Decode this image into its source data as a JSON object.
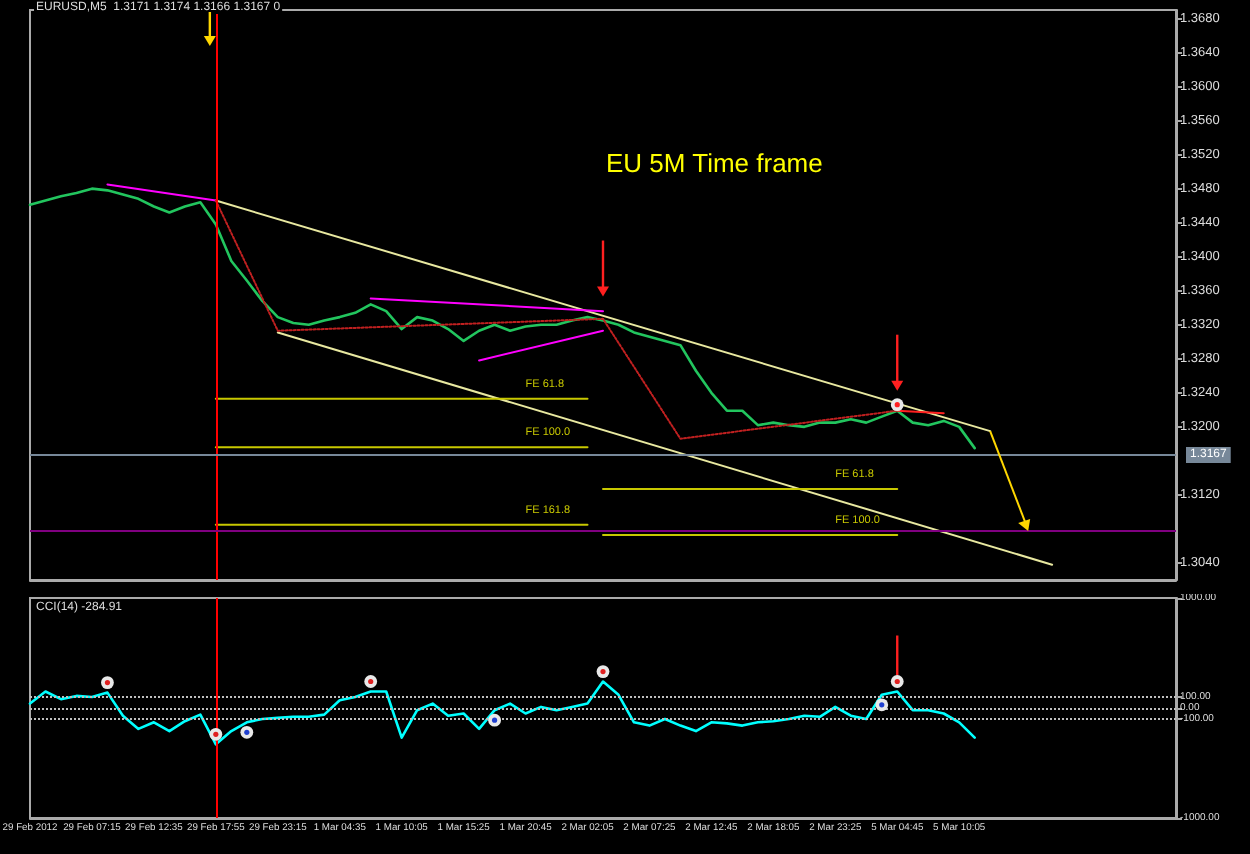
{
  "chart_data": [
    {
      "type": "line",
      "title": "EURUSD,M5  1.3171 1.3174 1.3166 1.3167 0",
      "annotations": [
        "EU 5M Time frame"
      ],
      "categories": [
        "29 Feb 2012",
        null,
        null,
        null,
        "29 Feb 07:15",
        null,
        null,
        null,
        "29 Feb 12:35",
        null,
        null,
        null,
        "29 Feb 17:55",
        null,
        null,
        null,
        "29 Feb 23:15",
        null,
        null,
        null,
        "1 Mar 04:35",
        null,
        null,
        null,
        "1 Mar 10:05",
        null,
        null,
        null,
        "1 Mar 15:25",
        null,
        null,
        null,
        "1 Mar 20:45",
        null,
        null,
        null,
        "2 Mar 02:05",
        null,
        null,
        null,
        "2 Mar 07:25",
        null,
        null,
        null,
        "2 Mar 12:45",
        null,
        null,
        null,
        "2 Mar 18:05",
        null,
        null,
        null,
        "2 Mar 23:25",
        null,
        null,
        null,
        "5 Mar 04:45",
        null,
        null,
        null,
        "5 Mar 10:05",
        null,
        null,
        null,
        null,
        null,
        null,
        null,
        null,
        null,
        null,
        null,
        null,
        null,
        null
      ],
      "ylim": [
        1.302,
        1.369
      ],
      "yticks": [
        {
          "value": 1.304,
          "label": "1.3040"
        },
        {
          "value": 1.312,
          "label": "1.3120"
        },
        {
          "value": 1.32,
          "label": "1.3200"
        },
        {
          "value": 1.324,
          "label": "1.3240"
        },
        {
          "value": 1.328,
          "label": "1.3280"
        },
        {
          "value": 1.332,
          "label": "1.3320"
        },
        {
          "value": 1.336,
          "label": "1.3360"
        },
        {
          "value": 1.34,
          "label": "1.3400"
        },
        {
          "value": 1.344,
          "label": "1.3440"
        },
        {
          "value": 1.348,
          "label": "1.3480"
        },
        {
          "value": 1.352,
          "label": "1.3520"
        },
        {
          "value": 1.356,
          "label": "1.3560"
        },
        {
          "value": 1.36,
          "label": "1.3600"
        },
        {
          "value": 1.364,
          "label": "1.3640"
        },
        {
          "value": 1.368,
          "label": "1.3680"
        }
      ],
      "tick_labels": "y",
      "marker": "none",
      "ref_lines": [
        {
          "axis": "x",
          "value": "29 Feb 17:55",
          "color": "#ff0000"
        },
        {
          "axis": "y",
          "value": 1.3167,
          "label": "1.3167",
          "color": "#778899"
        },
        {
          "axis": "y",
          "value": 1.3079,
          "color": "#800080"
        }
      ],
      "series": [
        {
          "color": "#22c55e",
          "values": [
            1.3461,
            1.3466,
            1.3471,
            1.3475,
            1.348,
            1.3478,
            1.3473,
            1.3468,
            1.3459,
            1.3452,
            1.3459,
            1.3464,
            1.3438,
            1.3395,
            1.3372,
            1.3348,
            1.3329,
            1.3322,
            1.332,
            1.3325,
            1.3329,
            1.3334,
            1.3344,
            1.3336,
            1.3315,
            1.3329,
            1.3325,
            1.3315,
            1.3301,
            1.3313,
            1.332,
            1.3313,
            1.3318,
            1.332,
            1.332,
            1.3325,
            1.3329,
            1.3325,
            1.332,
            1.3311,
            1.3306,
            1.3301,
            1.3296,
            1.3266,
            1.324,
            1.3219,
            1.3219,
            1.3202,
            1.3205,
            1.3202,
            1.32,
            1.3205,
            1.3205,
            1.3209,
            1.3205,
            1.3212,
            1.3219,
            1.3205,
            1.3202,
            1.3207,
            1.32,
            1.3175,
            null,
            null,
            null,
            null,
            null,
            null,
            null,
            null,
            null,
            null,
            null,
            null,
            null
          ]
        },
        {
          "color": "#e8e8a0",
          "values": [
            null,
            null,
            null,
            null,
            null,
            null,
            null,
            null,
            null,
            null,
            null,
            null,
            1.3466,
            null,
            null,
            null,
            null,
            null,
            null,
            null,
            null,
            null,
            null,
            null,
            null,
            null,
            null,
            null,
            null,
            null,
            null,
            null,
            null,
            null,
            null,
            null,
            null,
            null,
            null,
            null,
            null,
            null,
            null,
            null,
            null,
            null,
            null,
            null,
            null,
            null,
            null,
            null,
            null,
            null,
            null,
            null,
            null,
            null,
            null,
            null,
            null,
            null,
            1.3195,
            null,
            null,
            null,
            null,
            null,
            null,
            null,
            null,
            null,
            null,
            null,
            null
          ]
        },
        {
          "color": "#e8e8a0",
          "values": [
            null,
            null,
            null,
            null,
            null,
            null,
            null,
            null,
            null,
            null,
            null,
            null,
            null,
            null,
            null,
            null,
            1.3311,
            null,
            null,
            null,
            null,
            null,
            null,
            null,
            null,
            null,
            null,
            null,
            null,
            null,
            null,
            null,
            null,
            null,
            null,
            null,
            null,
            null,
            null,
            null,
            null,
            null,
            null,
            null,
            null,
            null,
            null,
            null,
            null,
            null,
            null,
            null,
            null,
            null,
            null,
            null,
            null,
            null,
            null,
            null,
            null,
            null,
            null,
            null,
            null,
            null,
            1.3038,
            null,
            null,
            null,
            null,
            null,
            null,
            null,
            null
          ]
        },
        {
          "color": "#ff00ff",
          "values": [
            null,
            null,
            null,
            null,
            null,
            1.3485,
            null,
            null,
            null,
            null,
            null,
            null,
            1.3466,
            null,
            null,
            null,
            null,
            null,
            null,
            null,
            null,
            null,
            null,
            null,
            null,
            null,
            null,
            null,
            null,
            null,
            null,
            null,
            null,
            null,
            null,
            null,
            null,
            null,
            null,
            null,
            null,
            null,
            null,
            null,
            null,
            null,
            null,
            null,
            null,
            null,
            null,
            null,
            null,
            null,
            null,
            null,
            null,
            null,
            null,
            null,
            null,
            null,
            null,
            null,
            null,
            null,
            null,
            null,
            null,
            null,
            null,
            null,
            null,
            null,
            null
          ]
        },
        {
          "color": "#ff00ff",
          "values": [
            null,
            null,
            null,
            null,
            null,
            null,
            null,
            null,
            null,
            null,
            null,
            null,
            null,
            null,
            null,
            null,
            null,
            null,
            null,
            null,
            null,
            null,
            1.3351,
            null,
            null,
            null,
            null,
            null,
            null,
            null,
            null,
            null,
            null,
            null,
            null,
            null,
            null,
            1.3336,
            null,
            null,
            null,
            null,
            null,
            null,
            null,
            null,
            null,
            null,
            null,
            null,
            null,
            null,
            null,
            null,
            null,
            null,
            null,
            null,
            null,
            null,
            null,
            null,
            null,
            null,
            null,
            null,
            null,
            null,
            null,
            null,
            null,
            null,
            null,
            null,
            null
          ]
        },
        {
          "color": "#ff00ff",
          "values": [
            null,
            null,
            null,
            null,
            null,
            null,
            null,
            null,
            null,
            null,
            null,
            null,
            null,
            null,
            null,
            null,
            null,
            null,
            null,
            null,
            null,
            null,
            null,
            null,
            null,
            null,
            null,
            null,
            null,
            1.3278,
            null,
            null,
            null,
            null,
            null,
            null,
            null,
            1.3313,
            null,
            null,
            null,
            null,
            null,
            null,
            null,
            null,
            null,
            null,
            null,
            null,
            null,
            null,
            null,
            null,
            null,
            null,
            null,
            null,
            null,
            null,
            null,
            null,
            null,
            null,
            null,
            null,
            null,
            null,
            null,
            null,
            null,
            null,
            null,
            null,
            null
          ]
        },
        {
          "color": "#ff2020",
          "values": [
            null,
            null,
            null,
            null,
            null,
            null,
            null,
            null,
            null,
            null,
            null,
            null,
            null,
            null,
            null,
            null,
            null,
            null,
            null,
            null,
            null,
            null,
            null,
            null,
            null,
            null,
            null,
            null,
            null,
            null,
            null,
            null,
            null,
            null,
            null,
            null,
            null,
            null,
            null,
            null,
            null,
            null,
            null,
            null,
            null,
            null,
            null,
            null,
            null,
            null,
            null,
            null,
            null,
            null,
            null,
            null,
            1.3219,
            null,
            null,
            1.3216,
            null,
            null,
            null,
            null,
            null,
            null,
            null,
            null,
            null,
            null,
            null,
            null,
            null,
            null,
            null
          ]
        },
        {
          "color": "#c02020",
          "line_style": "dotted",
          "values": [
            null,
            null,
            null,
            null,
            null,
            null,
            null,
            null,
            null,
            null,
            null,
            null,
            1.3466,
            null,
            null,
            null,
            1.3313,
            null,
            null,
            null,
            null,
            null,
            null,
            null,
            null,
            null,
            null,
            null,
            null,
            null,
            null,
            null,
            null,
            null,
            null,
            null,
            null,
            1.3327,
            null,
            null,
            null,
            null,
            1.3186,
            null,
            null,
            null,
            null,
            null,
            null,
            null,
            null,
            null,
            null,
            null,
            null,
            null,
            1.3219,
            null,
            null,
            null,
            null,
            null,
            null,
            null,
            null,
            null,
            null,
            null,
            null,
            null,
            null,
            null,
            null,
            null,
            null
          ]
        },
        {
          "name": "FE 61.8",
          "color": "#c8c800",
          "values": [
            null,
            null,
            null,
            null,
            null,
            null,
            null,
            null,
            null,
            null,
            null,
            null,
            1.3233,
            null,
            null,
            null,
            null,
            null,
            null,
            null,
            null,
            null,
            null,
            null,
            null,
            null,
            null,
            null,
            null,
            null,
            null,
            null,
            null,
            null,
            null,
            null,
            1.3233,
            null,
            null,
            null,
            null,
            null,
            null,
            null,
            null,
            null,
            null,
            null,
            null,
            null,
            null,
            null,
            null,
            null,
            null,
            null,
            null,
            null,
            null,
            null,
            null,
            null,
            null,
            null,
            null,
            null,
            null,
            null,
            null,
            null,
            null,
            null,
            null,
            null,
            null
          ]
        },
        {
          "name": "FE 100.0",
          "color": "#c8c800",
          "values": [
            null,
            null,
            null,
            null,
            null,
            null,
            null,
            null,
            null,
            null,
            null,
            null,
            1.3176,
            null,
            null,
            null,
            null,
            null,
            null,
            null,
            null,
            null,
            null,
            null,
            null,
            null,
            null,
            null,
            null,
            null,
            null,
            null,
            null,
            null,
            null,
            null,
            1.3176,
            null,
            null,
            null,
            null,
            null,
            null,
            null,
            null,
            null,
            null,
            null,
            null,
            null,
            null,
            null,
            null,
            null,
            null,
            null,
            null,
            null,
            null,
            null,
            null,
            null,
            null,
            null,
            null,
            null,
            null,
            null,
            null,
            null,
            null,
            null,
            null,
            null,
            null
          ]
        },
        {
          "name": "FE 161.8",
          "color": "#c8c800",
          "values": [
            null,
            null,
            null,
            null,
            null,
            null,
            null,
            null,
            null,
            null,
            null,
            null,
            1.3085,
            null,
            null,
            null,
            null,
            null,
            null,
            null,
            null,
            null,
            null,
            null,
            null,
            null,
            null,
            null,
            null,
            null,
            null,
            null,
            null,
            null,
            null,
            null,
            1.3085,
            null,
            null,
            null,
            null,
            null,
            null,
            null,
            null,
            null,
            null,
            null,
            null,
            null,
            null,
            null,
            null,
            null,
            null,
            null,
            null,
            null,
            null,
            null,
            null,
            null,
            null,
            null,
            null,
            null,
            null,
            null,
            null,
            null,
            null,
            null,
            null,
            null,
            null
          ]
        },
        {
          "name": "FE 61.8",
          "color": "#c8c800",
          "values": [
            null,
            null,
            null,
            null,
            null,
            null,
            null,
            null,
            null,
            null,
            null,
            null,
            null,
            null,
            null,
            null,
            null,
            null,
            null,
            null,
            null,
            null,
            null,
            null,
            null,
            null,
            null,
            null,
            null,
            null,
            null,
            null,
            null,
            null,
            null,
            null,
            null,
            1.3127,
            null,
            null,
            null,
            null,
            null,
            null,
            null,
            null,
            null,
            null,
            null,
            null,
            null,
            null,
            null,
            null,
            null,
            null,
            1.3127,
            null,
            null,
            null,
            null,
            null,
            null,
            null,
            null,
            null,
            null,
            null,
            null,
            null,
            null,
            null,
            null,
            null,
            null
          ]
        },
        {
          "name": "FE 100.0",
          "color": "#c8c800",
          "values": [
            null,
            null,
            null,
            null,
            null,
            null,
            null,
            null,
            null,
            null,
            null,
            null,
            null,
            null,
            null,
            null,
            null,
            null,
            null,
            null,
            null,
            null,
            null,
            null,
            null,
            null,
            null,
            null,
            null,
            null,
            null,
            null,
            null,
            null,
            null,
            null,
            null,
            1.3073,
            null,
            null,
            null,
            null,
            null,
            null,
            null,
            null,
            null,
            null,
            null,
            null,
            null,
            null,
            null,
            null,
            null,
            null,
            1.3073,
            null,
            null,
            null,
            null,
            null,
            null,
            null,
            null,
            null,
            null,
            null,
            null,
            null,
            null,
            null,
            null,
            null,
            null
          ]
        }
      ]
    },
    {
      "type": "line",
      "title": "CCI(14) -284.91",
      "categories": [
        "29 Feb 2012",
        null,
        null,
        null,
        "29 Feb 07:15",
        null,
        null,
        null,
        "29 Feb 12:35",
        null,
        null,
        null,
        "29 Feb 17:55",
        null,
        null,
        null,
        "29 Feb 23:15",
        null,
        null,
        null,
        "1 Mar 04:35",
        null,
        null,
        null,
        "1 Mar 10:05",
        null,
        null,
        null,
        "1 Mar 15:25",
        null,
        null,
        null,
        "1 Mar 20:45",
        null,
        null,
        null,
        "2 Mar 02:05",
        null,
        null,
        null,
        "2 Mar 07:25",
        null,
        null,
        null,
        "2 Mar 12:45",
        null,
        null,
        null,
        "2 Mar 18:05",
        null,
        null,
        null,
        "2 Mar 23:25",
        null,
        null,
        null,
        "5 Mar 04:45",
        null,
        null,
        null,
        "5 Mar 10:05",
        null,
        null,
        null,
        null,
        null,
        null,
        null,
        null,
        null,
        null,
        null,
        null,
        null,
        null
      ],
      "ylim": [
        -1000,
        1000
      ],
      "yticks": [
        {
          "value": -1000,
          "label": "-1000.00"
        },
        {
          "value": -100,
          "label": "-100.00"
        },
        {
          "value": 0,
          "label": "0.00"
        },
        {
          "value": 100,
          "label": "100.00"
        },
        {
          "value": 1000,
          "label": "1000.00"
        }
      ],
      "marker": "none",
      "ref_lines": [
        {
          "axis": "x",
          "value": "29 Feb 17:55",
          "color": "#ff0000"
        },
        {
          "axis": "y",
          "value": 100,
          "color": "#c0c0c0",
          "line_style": "dotted"
        },
        {
          "axis": "y",
          "value": 0,
          "color": "#c0c0c0",
          "line_style": "dotted"
        },
        {
          "axis": "y",
          "value": -100,
          "color": "#c0c0c0",
          "line_style": "dotted"
        }
      ],
      "series": [
        {
          "color": "#00ffff",
          "values": [
            40,
            150,
            80,
            110,
            100,
            140,
            -70,
            -190,
            -130,
            -210,
            -120,
            -60,
            -330,
            -210,
            -130,
            -100,
            -90,
            -80,
            -80,
            -60,
            70,
            100,
            150,
            150,
            -270,
            -20,
            40,
            -70,
            -50,
            -190,
            -20,
            40,
            -50,
            10,
            -20,
            10,
            40,
            240,
            120,
            -130,
            -160,
            -100,
            -160,
            -210,
            -130,
            -140,
            -160,
            -130,
            -120,
            -100,
            -70,
            -80,
            10,
            -70,
            -100,
            120,
            150,
            -20,
            -20,
            -50,
            -130,
            -270,
            null,
            null,
            null,
            null,
            null,
            null,
            null,
            null,
            null,
            null,
            null,
            null,
            null
          ]
        }
      ]
    }
  ]
}
